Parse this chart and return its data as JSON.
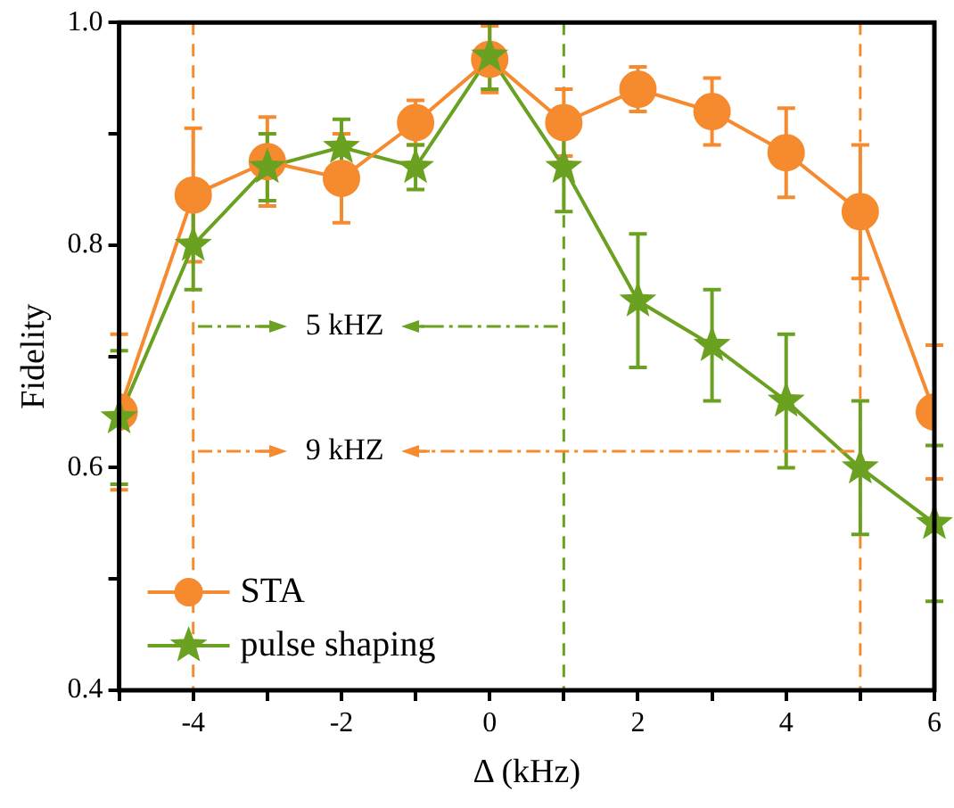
{
  "chart_data": {
    "type": "line",
    "xlabel": "Δ (kHz)",
    "ylabel": "Fidelity",
    "x": [
      -5,
      -4,
      -3,
      -2,
      -1,
      0,
      1,
      2,
      3,
      4,
      5,
      6
    ],
    "series": [
      {
        "name": "STA",
        "color": "#f58a2f",
        "marker": "circle",
        "values": [
          0.65,
          0.845,
          0.875,
          0.86,
          0.91,
          0.967,
          0.91,
          0.94,
          0.92,
          0.883,
          0.83,
          0.65
        ],
        "errors": [
          0.07,
          0.06,
          0.04,
          0.04,
          0.02,
          0.03,
          0.03,
          0.02,
          0.03,
          0.04,
          0.06,
          0.06
        ]
      },
      {
        "name": "pulse shaping",
        "color": "#6aa121",
        "marker": "star",
        "values": [
          0.645,
          0.8,
          0.87,
          0.888,
          0.87,
          0.97,
          0.87,
          0.75,
          0.71,
          0.66,
          0.6,
          0.55
        ],
        "errors": [
          0.06,
          0.04,
          0.03,
          0.025,
          0.02,
          0.03,
          0.04,
          0.06,
          0.05,
          0.06,
          0.06,
          0.07
        ]
      }
    ],
    "xlim": [
      -5,
      6
    ],
    "xticks": [
      {
        "value": -5,
        "label": null
      },
      -4,
      {
        "value": -3,
        "label": null
      },
      -2,
      {
        "value": -1,
        "label": null
      },
      0,
      {
        "value": 1,
        "label": null
      },
      2,
      {
        "value": 3,
        "label": null
      },
      4,
      {
        "value": 5,
        "label": null
      },
      6
    ],
    "ylim": [
      0.4,
      1.0
    ],
    "yticks": [
      0.4,
      {
        "value": 0.5,
        "label": null
      },
      0.6,
      {
        "value": 0.7,
        "label": null
      },
      0.8,
      {
        "value": 0.9,
        "label": null
      },
      {
        "value": 1,
        "label": "1.0"
      }
    ],
    "ref_lines": [
      {
        "axis": "x",
        "value": -4,
        "color": "#f58a2f",
        "line_style": "dashed"
      },
      {
        "axis": "x",
        "value": 1,
        "color": "#6aa121",
        "line_style": "dashed"
      },
      {
        "axis": "x",
        "value": 5,
        "color": "#f58a2f",
        "line_style": "dashed"
      }
    ],
    "annotations": [
      "5 kHZ",
      "9 kHZ"
    ],
    "grid": false,
    "legend": "bottom left"
  }
}
